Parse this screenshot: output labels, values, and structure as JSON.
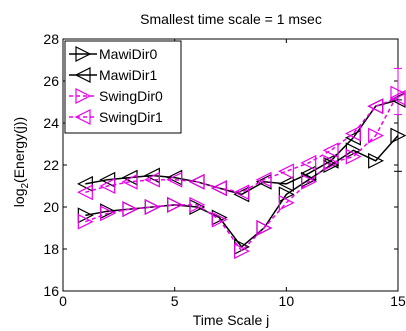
{
  "chart_data": {
    "type": "line",
    "title": "Smallest time scale = 1 msec",
    "xlabel": "Time Scale j",
    "ylabel_main": "log",
    "ylabel_sub": "2",
    "ylabel_rest": "(Energy(j))",
    "xlim": [
      0,
      15
    ],
    "ylim": [
      16,
      28
    ],
    "xticks": [
      "0",
      "5",
      "10",
      "15"
    ],
    "yticks": [
      "16",
      "18",
      "20",
      "22",
      "24",
      "26",
      "28"
    ],
    "grid": false,
    "legend_position": "top-left",
    "x": [
      1,
      2,
      3,
      4,
      5,
      6,
      7,
      8,
      9,
      10,
      11,
      12,
      13,
      14,
      15
    ],
    "series": [
      {
        "name": "MawiDir0",
        "color": "#000000",
        "marker": "triangle-right",
        "line": "solid",
        "values": [
          19.6,
          19.8,
          19.9,
          20.0,
          20.1,
          20.0,
          19.5,
          18.1,
          19.0,
          20.6,
          21.3,
          22.0,
          22.7,
          22.2,
          23.4
        ]
      },
      {
        "name": "MawiDir1",
        "color": "#000000",
        "marker": "triangle-left",
        "line": "solid",
        "values": [
          21.1,
          21.3,
          21.4,
          21.5,
          21.4,
          21.2,
          20.9,
          20.6,
          21.2,
          21.1,
          21.6,
          22.2,
          23.3,
          24.8,
          25.1
        ]
      },
      {
        "name": "SwingDir0",
        "color": "#ee00ee",
        "marker": "triangle-right",
        "line": "dashed",
        "values": [
          19.3,
          19.7,
          19.9,
          20.0,
          20.1,
          20.1,
          19.4,
          17.9,
          19.0,
          20.2,
          21.2,
          22.1,
          22.4,
          23.4,
          25.4
        ]
      },
      {
        "name": "SwingDir1",
        "color": "#ee00ee",
        "marker": "triangle-left",
        "line": "dashed",
        "values": [
          20.7,
          21.0,
          21.2,
          21.3,
          21.3,
          21.2,
          20.9,
          20.7,
          21.3,
          21.7,
          22.1,
          22.7,
          23.5,
          24.8,
          25.2
        ]
      }
    ],
    "error_bars": [
      {
        "series": "MawiDir0",
        "x": 15,
        "low": 21.7,
        "high": 25.1
      },
      {
        "series": "SwingDir0",
        "x": 15,
        "low": 24.4,
        "high": 26.6
      }
    ]
  }
}
